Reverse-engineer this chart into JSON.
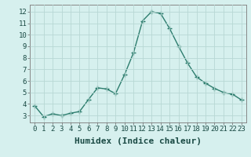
{
  "x": [
    0,
    1,
    2,
    3,
    4,
    5,
    6,
    7,
    8,
    9,
    10,
    11,
    12,
    13,
    14,
    15,
    16,
    17,
    18,
    19,
    20,
    21,
    22,
    23
  ],
  "y": [
    3.85,
    2.9,
    3.15,
    3.0,
    3.2,
    3.35,
    4.4,
    5.4,
    5.3,
    4.9,
    6.55,
    8.45,
    11.2,
    12.0,
    11.85,
    10.55,
    9.0,
    7.55,
    6.35,
    5.8,
    5.35,
    5.0,
    4.85,
    4.35
  ],
  "line_color": "#2d7d6e",
  "marker": "+",
  "marker_size": 4,
  "bg_color": "#d6f0ee",
  "grid_color": "#b8d8d4",
  "xlabel": "Humidex (Indice chaleur)",
  "xlim": [
    -0.5,
    23.5
  ],
  "ylim": [
    2.4,
    12.6
  ],
  "yticks": [
    3,
    4,
    5,
    6,
    7,
    8,
    9,
    10,
    11,
    12
  ],
  "xticks": [
    0,
    1,
    2,
    3,
    4,
    5,
    6,
    7,
    8,
    9,
    10,
    11,
    12,
    13,
    14,
    15,
    16,
    17,
    18,
    19,
    20,
    21,
    22,
    23
  ],
  "tick_fontsize": 6.5,
  "xlabel_fontsize": 8,
  "line_width": 1.0,
  "marker_color": "#2d7d6e"
}
